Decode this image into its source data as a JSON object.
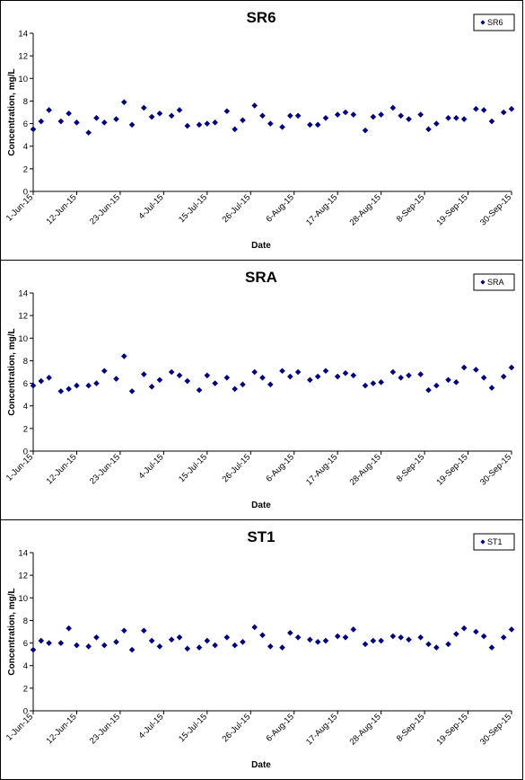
{
  "x_dates": [
    "2015-06-01",
    "2015-06-03",
    "2015-06-05",
    "2015-06-08",
    "2015-06-10",
    "2015-06-12",
    "2015-06-15",
    "2015-06-17",
    "2015-06-19",
    "2015-06-22",
    "2015-06-24",
    "2015-06-26",
    "2015-06-29",
    "2015-07-01",
    "2015-07-03",
    "2015-07-06",
    "2015-07-08",
    "2015-07-10",
    "2015-07-13",
    "2015-07-15",
    "2015-07-17",
    "2015-07-20",
    "2015-07-22",
    "2015-07-24",
    "2015-07-27",
    "2015-07-29",
    "2015-07-31",
    "2015-08-03",
    "2015-08-05",
    "2015-08-07",
    "2015-08-10",
    "2015-08-12",
    "2015-08-14",
    "2015-08-17",
    "2015-08-19",
    "2015-08-21",
    "2015-08-24",
    "2015-08-26",
    "2015-08-28",
    "2015-08-31",
    "2015-09-02",
    "2015-09-04",
    "2015-09-07",
    "2015-09-09",
    "2015-09-11",
    "2015-09-14",
    "2015-09-16",
    "2015-09-18",
    "2015-09-21",
    "2015-09-23",
    "2015-09-25",
    "2015-09-28",
    "2015-09-30"
  ],
  "chart_data": [
    {
      "type": "scatter",
      "title": "SR6",
      "xlabel": "Date",
      "ylabel": "Concentration, mg/L",
      "ylim": [
        0,
        14
      ],
      "yticks": [
        "0",
        "2",
        "4",
        "6",
        "8",
        "10",
        "12",
        "14"
      ],
      "xlim": [
        "2015-06-01",
        "2015-09-30"
      ],
      "xtick_labels": [
        "1-Jun-15",
        "12-Jun-15",
        "23-Jun-15",
        "4-Jul-15",
        "15-Jul-15",
        "26-Jul-15",
        "6-Aug-15",
        "17-Aug-15",
        "28-Aug-15",
        "8-Sep-15",
        "19-Sep-15",
        "30-Sep-15"
      ],
      "grid": false,
      "legend_position": "top-right",
      "series": [
        {
          "name": "SR6",
          "color": "#000080",
          "marker": "diamond",
          "y": [
            5.5,
            6.2,
            7.2,
            6.2,
            6.9,
            6.1,
            5.2,
            6.5,
            6.1,
            6.4,
            7.9,
            5.9,
            7.4,
            6.6,
            6.9,
            6.7,
            7.2,
            5.8,
            5.9,
            6.0,
            6.1,
            7.1,
            5.5,
            6.3,
            7.6,
            6.7,
            6.0,
            5.7,
            6.7,
            6.7,
            5.9,
            5.9,
            6.5,
            6.8,
            7.0,
            6.8,
            5.4,
            6.6,
            6.8,
            7.4,
            6.7,
            6.4,
            6.8,
            5.5,
            6.0,
            6.5,
            6.5,
            6.4,
            7.3,
            7.2,
            6.2,
            7.0,
            7.3
          ]
        }
      ]
    },
    {
      "type": "scatter",
      "title": "SRA",
      "xlabel": "Date",
      "ylabel": "Concentration, mg/L",
      "ylim": [
        0,
        14
      ],
      "yticks": [
        "0",
        "2",
        "4",
        "6",
        "8",
        "10",
        "12",
        "14"
      ],
      "xlim": [
        "2015-06-01",
        "2015-09-30"
      ],
      "xtick_labels": [
        "1-Jun-15",
        "12-Jun-15",
        "23-Jun-15",
        "4-Jul-15",
        "15-Jul-15",
        "26-Jul-15",
        "6-Aug-15",
        "17-Aug-15",
        "28-Aug-15",
        "8-Sep-15",
        "19-Sep-15",
        "30-Sep-15"
      ],
      "grid": false,
      "legend_position": "top-right",
      "series": [
        {
          "name": "SRA",
          "color": "#000080",
          "marker": "diamond",
          "y": [
            5.8,
            6.2,
            6.5,
            5.3,
            5.5,
            5.8,
            5.8,
            6.0,
            7.1,
            6.4,
            8.4,
            5.3,
            6.8,
            5.7,
            6.3,
            7.0,
            6.7,
            6.2,
            5.4,
            6.7,
            6.0,
            6.5,
            5.5,
            5.9,
            7.0,
            6.5,
            5.9,
            7.1,
            6.6,
            7.0,
            6.3,
            6.6,
            7.1,
            6.6,
            6.9,
            6.7,
            5.8,
            6.0,
            6.1,
            7.0,
            6.5,
            6.7,
            6.8,
            5.4,
            5.8,
            6.3,
            6.1,
            7.4,
            7.2,
            6.5,
            5.6,
            6.6,
            7.4
          ]
        }
      ]
    },
    {
      "type": "scatter",
      "title": "ST1",
      "xlabel": "Date",
      "ylabel": "Concentration, mg/L",
      "ylim": [
        0,
        14
      ],
      "yticks": [
        "0",
        "2",
        "4",
        "6",
        "8",
        "10",
        "12",
        "14"
      ],
      "xlim": [
        "2015-06-01",
        "2015-09-30"
      ],
      "xtick_labels": [
        "1-Jun-15",
        "12-Jun-15",
        "23-Jun-15",
        "4-Jul-15",
        "15-Jul-15",
        "26-Jul-15",
        "6-Aug-15",
        "17-Aug-15",
        "28-Aug-15",
        "8-Sep-15",
        "19-Sep-15",
        "30-Sep-15"
      ],
      "grid": false,
      "legend_position": "top-right",
      "series": [
        {
          "name": "ST1",
          "color": "#000080",
          "marker": "diamond",
          "y": [
            5.4,
            6.2,
            6.0,
            6.0,
            7.3,
            5.8,
            5.7,
            6.5,
            5.8,
            6.1,
            7.1,
            5.4,
            7.1,
            6.2,
            5.7,
            6.3,
            6.5,
            5.5,
            5.6,
            6.2,
            5.8,
            6.5,
            5.8,
            6.1,
            7.4,
            6.7,
            5.7,
            5.6,
            6.9,
            6.5,
            6.3,
            6.1,
            6.2,
            6.6,
            6.5,
            7.2,
            5.9,
            6.2,
            6.2,
            6.6,
            6.5,
            6.3,
            6.5,
            5.9,
            5.6,
            5.9,
            6.8,
            7.3,
            7.0,
            6.6,
            5.6,
            6.5,
            7.2
          ]
        }
      ]
    }
  ]
}
